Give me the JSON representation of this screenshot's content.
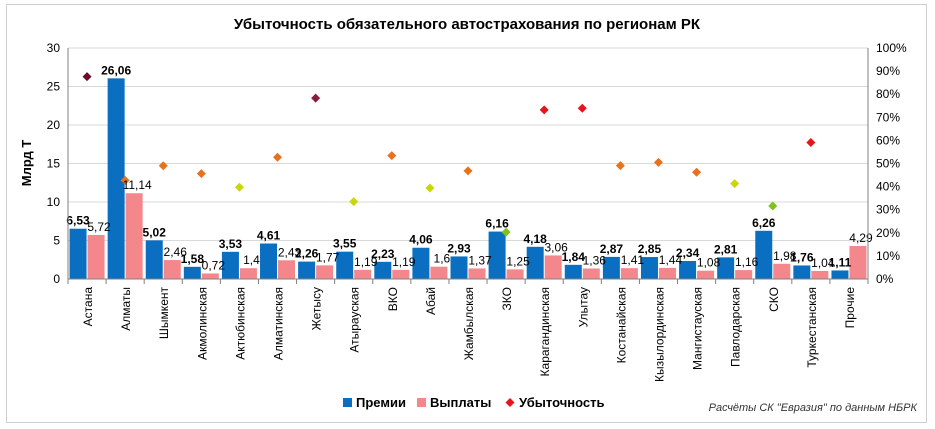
{
  "chart_data": {
    "type": "bar",
    "title": "Убыточность обязательного автострахования по регионам РК",
    "ylabel": "Млрд Т",
    "ylim": [
      0,
      30
    ],
    "y_ticks": [
      "0",
      "5",
      "10",
      "15",
      "20",
      "25",
      "30"
    ],
    "y2lim": [
      0,
      100
    ],
    "y2_ticks": [
      "0%",
      "10%",
      "20%",
      "30%",
      "40%",
      "50%",
      "60%",
      "70%",
      "80%",
      "90%",
      "100%"
    ],
    "grid": true,
    "legend_position": "bottom",
    "source_note": "Расчёты СК \"Евразия\" по данным НБРК",
    "categories": [
      "Астана",
      "Алматы",
      "Шымкент",
      "Акмолинская",
      "Актюбинская",
      "Алматинская",
      "Жетысу",
      "Атырауская",
      "ВКО",
      "Абай",
      "Жамбылская",
      "ЗКО",
      "Карагандинская",
      "Улытау",
      "Костанайская",
      "Кызылординская",
      "Мангистауская",
      "Павлодарская",
      "СКО",
      "Туркестанская",
      "Прочие"
    ],
    "series": [
      {
        "name": "Премии",
        "type": "bar",
        "axis": "left",
        "color": "#0b6fc1",
        "values": [
          6.53,
          26.06,
          5.02,
          1.58,
          3.53,
          4.61,
          2.26,
          3.55,
          2.23,
          4.06,
          2.93,
          6.16,
          4.18,
          1.84,
          2.87,
          2.85,
          2.34,
          2.81,
          6.26,
          1.76,
          1.11
        ],
        "labels": [
          "6,53",
          "26,06",
          "5,02",
          "1,58",
          "3,53",
          "4,61",
          "2,26",
          "3,55",
          "2,23",
          "4,06",
          "2,93",
          "6,16",
          "4,18",
          "1,84",
          "2,87",
          "2,85",
          "2,34",
          "2,81",
          "6,26",
          "1,76",
          "1,11"
        ]
      },
      {
        "name": "Выплаты",
        "type": "bar",
        "axis": "left",
        "color": "#f4878c",
        "values": [
          5.72,
          11.14,
          2.46,
          0.72,
          1.4,
          2.43,
          1.77,
          1.19,
          1.19,
          1.6,
          1.37,
          1.25,
          3.06,
          1.36,
          1.41,
          1.44,
          1.08,
          1.16,
          1.98,
          1.04,
          4.29
        ],
        "labels": [
          "5,72",
          "11,14",
          "2,46",
          "0,72",
          "1,4",
          "2,43",
          "1,77",
          "1,19",
          "1,19",
          "1,6",
          "1,37",
          "1,25",
          "3,06",
          "1,36",
          "1,41",
          "1,44",
          "1,08",
          "1,16",
          "1,98",
          "1,04",
          "4,29"
        ]
      },
      {
        "name": "Убыточность",
        "type": "scatter",
        "axis": "right",
        "marker": "diamond",
        "legend_color": "#e8141b",
        "values": [
          87.6,
          42.7,
          49,
          45.6,
          39.7,
          52.7,
          78.3,
          33.5,
          53.4,
          39.4,
          46.8,
          20.3,
          73.2,
          73.9,
          49.1,
          50.5,
          46.2,
          41.3,
          31.6,
          59.1,
          null
        ],
        "colors": [
          "#6b0a2b",
          "#e8721c",
          "#e8721c",
          "#e8721c",
          "#c9d60a",
          "#e8721c",
          "#8b1a3c",
          "#c9d60a",
          "#e8721c",
          "#c9d60a",
          "#e8721c",
          "#7fc31c",
          "#e8141b",
          "#e8141b",
          "#e8721c",
          "#e8721c",
          "#e8721c",
          "#c9d60a",
          "#7fc31c",
          "#e8141b",
          null
        ]
      }
    ]
  }
}
